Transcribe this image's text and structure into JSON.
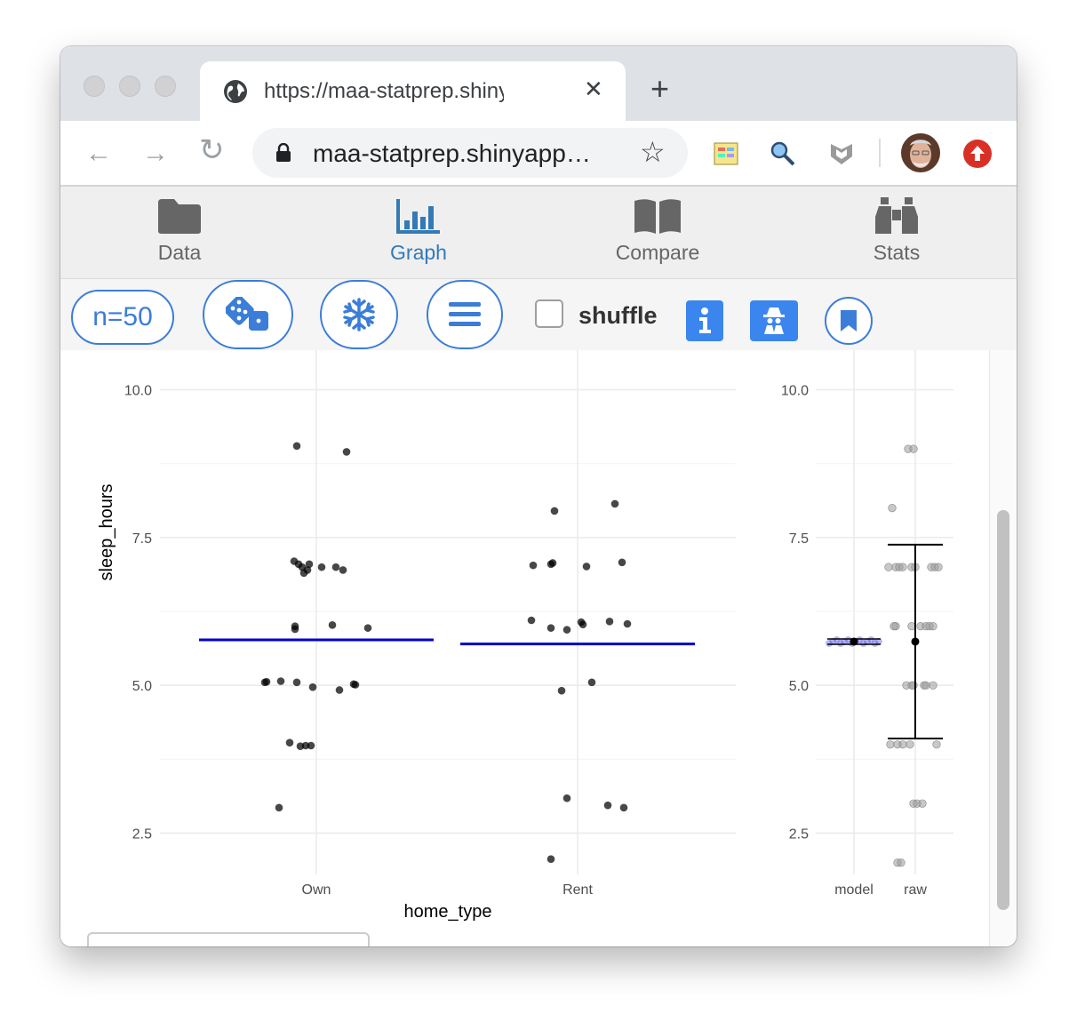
{
  "browser": {
    "tab_title": "https://maa-statprep.shinyapps.io",
    "tab_close": "✕",
    "new_tab": "+",
    "url": "maa-statprep.shinyapp…",
    "back": "←",
    "forward": "→",
    "reload": "↻",
    "star": "☆"
  },
  "app_nav": {
    "items": [
      {
        "label": "Data",
        "icon": "folder-icon"
      },
      {
        "label": "Graph",
        "icon": "bar-chart-icon"
      },
      {
        "label": "Compare",
        "icon": "book-icon"
      },
      {
        "label": "Stats",
        "icon": "binoculars-icon"
      }
    ],
    "active": "Graph"
  },
  "controls": {
    "sample_size": "n=50",
    "shuffle_label": "shuffle",
    "shuffle_checked": false,
    "icons": [
      "dice-icon",
      "snowflake-icon",
      "menu-icon",
      "info-icon",
      "spy-icon",
      "bookmark-icon"
    ]
  },
  "colors": {
    "accent": "#3b7dd8",
    "model_line": "#0000cc"
  },
  "chart_data": [
    {
      "type": "scatter",
      "xlabel": "home_type",
      "ylabel": "sleep_hours",
      "categories": [
        "Own",
        "Rent"
      ],
      "ylim": [
        1.8,
        10.4
      ],
      "yticks": [
        "2.5",
        "5.0",
        "7.5",
        "10.0"
      ],
      "grid": true,
      "series": [
        {
          "category": "Own",
          "points": [
            9.05,
            8.95,
            7.1,
            7.05,
            7.0,
            7.05,
            6.95,
            6.9,
            7.0,
            7.0,
            6.95,
            6.0,
            5.95,
            6.02,
            5.97,
            5.06,
            5.05,
            5.07,
            5.05,
            4.97,
            5.02,
            5.01,
            4.92,
            4.03,
            3.97,
            3.98,
            3.98,
            2.93
          ]
        },
        {
          "category": "Rent",
          "points": [
            7.95,
            8.07,
            7.03,
            7.05,
            7.07,
            7.01,
            7.08,
            6.1,
            5.97,
            5.94,
            6.07,
            6.03,
            6.08,
            6.04,
            5.05,
            4.91,
            3.09,
            2.97,
            2.93,
            2.06
          ]
        }
      ],
      "group_means": {
        "Own": 5.77,
        "Rent": 5.7
      }
    },
    {
      "type": "scatter",
      "categories": [
        "model",
        "raw"
      ],
      "ylim": [
        1.8,
        10.4
      ],
      "yticks": [
        "2.5",
        "5.0",
        "7.5",
        "10.0"
      ],
      "grid": true,
      "model_value": 5.74,
      "raw_mean": 5.74,
      "raw_interval": [
        4.1,
        7.38
      ],
      "raw_values": [
        9,
        9,
        8,
        7,
        7,
        7,
        7,
        7,
        7,
        7,
        7,
        7,
        6,
        6,
        6,
        6,
        6,
        6,
        6,
        5,
        5,
        5,
        5,
        5,
        5,
        4,
        4,
        4,
        4,
        4,
        3,
        3,
        3,
        2,
        2
      ]
    }
  ]
}
